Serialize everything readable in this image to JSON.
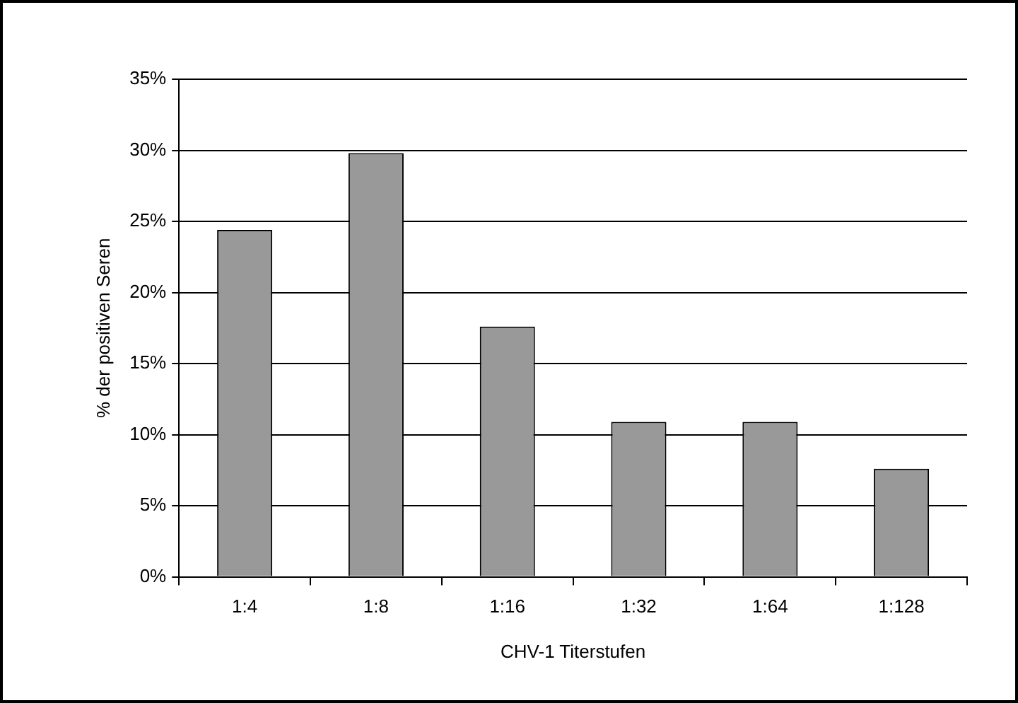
{
  "chart_data": {
    "type": "bar",
    "xlabel": "CHV-1 Titerstufen",
    "ylabel": "% der positiven Seren",
    "categories": [
      "1:4",
      "1:8",
      "1:16",
      "1:32",
      "1:64",
      "1:128"
    ],
    "values": [
      24.4,
      29.8,
      17.6,
      10.9,
      10.9,
      7.6
    ],
    "color": "#999999",
    "ylim": [
      0,
      35
    ],
    "yticks": [
      {
        "value": 0,
        "label": "0%"
      },
      {
        "value": 5,
        "label": "5%"
      },
      {
        "value": 10,
        "label": "10%"
      },
      {
        "value": 15,
        "label": "15%"
      },
      {
        "value": 20,
        "label": "20%"
      },
      {
        "value": 25,
        "label": "25%"
      },
      {
        "value": 30,
        "label": "30%"
      },
      {
        "value": 35,
        "label": "35%"
      }
    ],
    "grid": "y",
    "legend": false
  }
}
